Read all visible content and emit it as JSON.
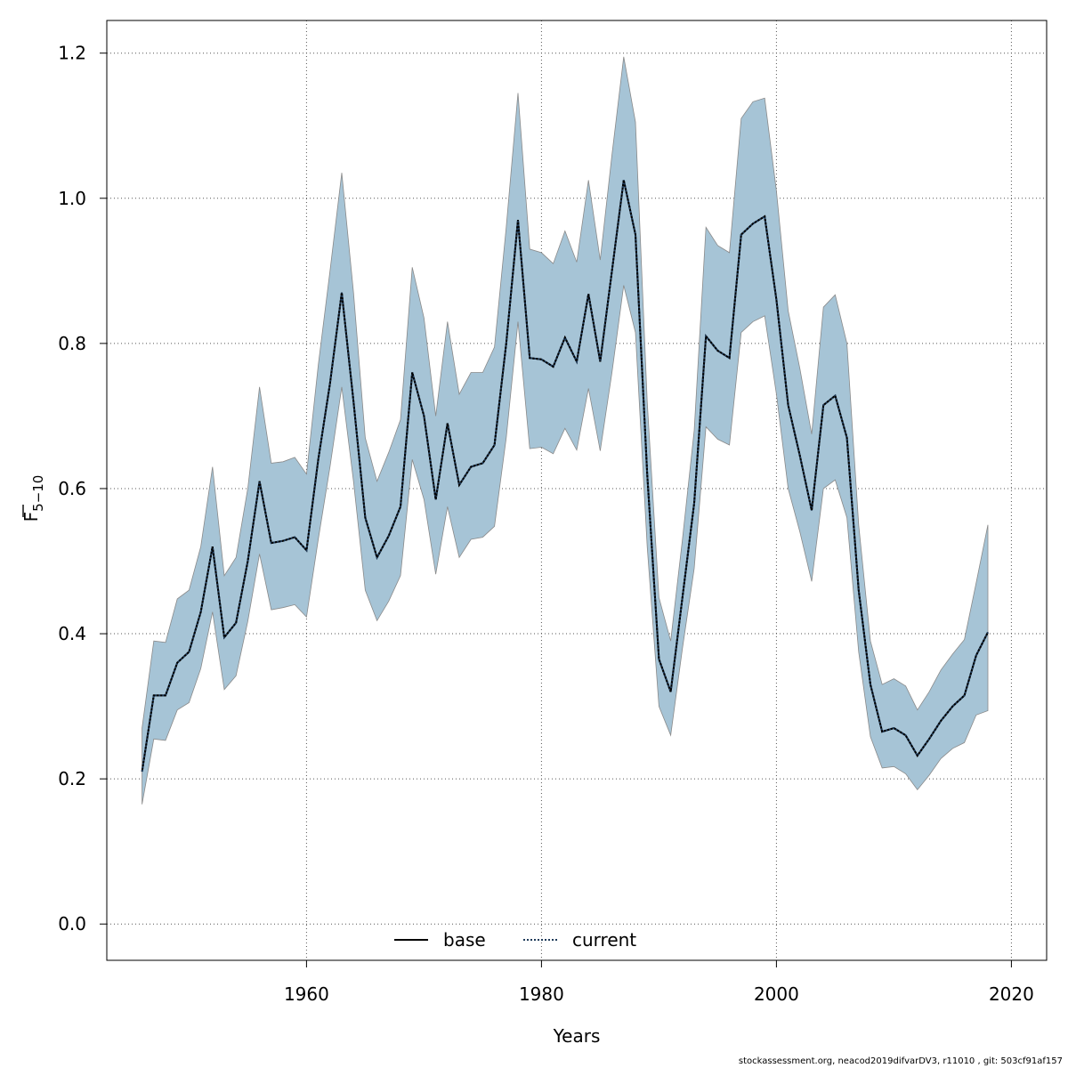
{
  "chart_data": {
    "type": "line",
    "xlabel": "Years",
    "ylabel_main": "F",
    "ylabel_sub": "5−10",
    "xlim": [
      1943,
      2023
    ],
    "ylim": [
      -0.05,
      1.245
    ],
    "x_ticks": [
      1960,
      1980,
      2000,
      2020
    ],
    "y_ticks": [
      0.0,
      0.2,
      0.4,
      0.6,
      0.8,
      1.0,
      1.2
    ],
    "x_tick_labels": [
      "1960",
      "1980",
      "2000",
      "2020"
    ],
    "y_tick_labels": [
      "0.0",
      "0.2",
      "0.4",
      "0.6",
      "0.8",
      "1.0",
      "1.2"
    ],
    "grid": true,
    "legend_position": "bottom-center",
    "legend": [
      {
        "name": "base",
        "style": "solid",
        "color": "#000000"
      },
      {
        "name": "current",
        "style": "dotted",
        "color": "#1f3b5a"
      }
    ],
    "band_color": "#a6c4d6",
    "x": [
      1946,
      1947,
      1948,
      1949,
      1950,
      1951,
      1952,
      1953,
      1954,
      1955,
      1956,
      1957,
      1958,
      1959,
      1960,
      1961,
      1962,
      1963,
      1964,
      1965,
      1966,
      1967,
      1968,
      1969,
      1970,
      1971,
      1972,
      1973,
      1974,
      1975,
      1976,
      1977,
      1978,
      1979,
      1980,
      1981,
      1982,
      1983,
      1984,
      1985,
      1986,
      1987,
      1988,
      1989,
      1990,
      1991,
      1992,
      1993,
      1994,
      1995,
      1996,
      1997,
      1998,
      1999,
      2000,
      2001,
      2002,
      2003,
      2004,
      2005,
      2006,
      2007,
      2008,
      2009,
      2010,
      2011,
      2012,
      2013,
      2014,
      2015,
      2016,
      2017,
      2018
    ],
    "series": [
      {
        "name": "base",
        "values": [
          0.21,
          0.315,
          0.315,
          0.36,
          0.375,
          0.43,
          0.52,
          0.395,
          0.415,
          0.5,
          0.61,
          0.525,
          0.528,
          0.533,
          0.515,
          0.64,
          0.745,
          0.87,
          0.72,
          0.56,
          0.505,
          0.535,
          0.575,
          0.76,
          0.7,
          0.585,
          0.69,
          0.605,
          0.63,
          0.635,
          0.66,
          0.8,
          0.97,
          0.78,
          0.778,
          0.768,
          0.808,
          0.775,
          0.868,
          0.775,
          0.9,
          1.025,
          0.95,
          0.62,
          0.365,
          0.32,
          0.45,
          0.58,
          0.81,
          0.79,
          0.78,
          0.95,
          0.965,
          0.975,
          0.86,
          0.715,
          0.645,
          0.57,
          0.715,
          0.728,
          0.67,
          0.46,
          0.33,
          0.265,
          0.27,
          0.26,
          0.232,
          0.255,
          0.28,
          0.3,
          0.315,
          0.37,
          0.402
        ]
      },
      {
        "name": "current",
        "values": [
          0.21,
          0.315,
          0.315,
          0.36,
          0.375,
          0.43,
          0.52,
          0.395,
          0.415,
          0.5,
          0.61,
          0.525,
          0.528,
          0.533,
          0.515,
          0.64,
          0.745,
          0.87,
          0.72,
          0.56,
          0.505,
          0.535,
          0.575,
          0.76,
          0.7,
          0.585,
          0.69,
          0.605,
          0.63,
          0.635,
          0.66,
          0.8,
          0.97,
          0.78,
          0.778,
          0.768,
          0.808,
          0.775,
          0.868,
          0.775,
          0.9,
          1.025,
          0.95,
          0.62,
          0.365,
          0.32,
          0.45,
          0.58,
          0.81,
          0.79,
          0.78,
          0.95,
          0.965,
          0.975,
          0.86,
          0.715,
          0.645,
          0.57,
          0.715,
          0.728,
          0.67,
          0.46,
          0.33,
          0.265,
          0.27,
          0.26,
          0.232,
          0.255,
          0.28,
          0.3,
          0.315,
          0.37,
          0.402
        ]
      }
    ],
    "upper": [
      0.27,
      0.39,
      0.388,
      0.448,
      0.46,
      0.52,
      0.63,
      0.48,
      0.505,
      0.6,
      0.74,
      0.635,
      0.637,
      0.643,
      0.62,
      0.77,
      0.9,
      1.035,
      0.87,
      0.67,
      0.61,
      0.65,
      0.695,
      0.905,
      0.835,
      0.7,
      0.83,
      0.73,
      0.76,
      0.76,
      0.795,
      0.96,
      1.145,
      0.93,
      0.925,
      0.91,
      0.955,
      0.912,
      1.025,
      0.915,
      1.06,
      1.195,
      1.105,
      0.72,
      0.45,
      0.39,
      0.53,
      0.68,
      0.96,
      0.935,
      0.925,
      1.11,
      1.133,
      1.138,
      1.01,
      0.845,
      0.765,
      0.675,
      0.85,
      0.867,
      0.8,
      0.55,
      0.39,
      0.33,
      0.338,
      0.328,
      0.295,
      0.32,
      0.35,
      0.372,
      0.392,
      0.47,
      0.55
    ],
    "lower": [
      0.165,
      0.255,
      0.253,
      0.295,
      0.305,
      0.352,
      0.43,
      0.323,
      0.342,
      0.417,
      0.51,
      0.433,
      0.436,
      0.44,
      0.423,
      0.53,
      0.63,
      0.74,
      0.61,
      0.46,
      0.418,
      0.445,
      0.48,
      0.64,
      0.585,
      0.482,
      0.575,
      0.505,
      0.53,
      0.533,
      0.548,
      0.67,
      0.83,
      0.655,
      0.657,
      0.648,
      0.683,
      0.653,
      0.738,
      0.652,
      0.76,
      0.88,
      0.815,
      0.52,
      0.3,
      0.26,
      0.38,
      0.49,
      0.685,
      0.668,
      0.66,
      0.815,
      0.83,
      0.838,
      0.73,
      0.6,
      0.54,
      0.472,
      0.6,
      0.612,
      0.56,
      0.375,
      0.258,
      0.215,
      0.217,
      0.207,
      0.185,
      0.205,
      0.228,
      0.242,
      0.25,
      0.288,
      0.294
    ]
  },
  "footer": "stockassessment.org, neacod2019difvarDV3, r11010 , git: 503cf91af157"
}
